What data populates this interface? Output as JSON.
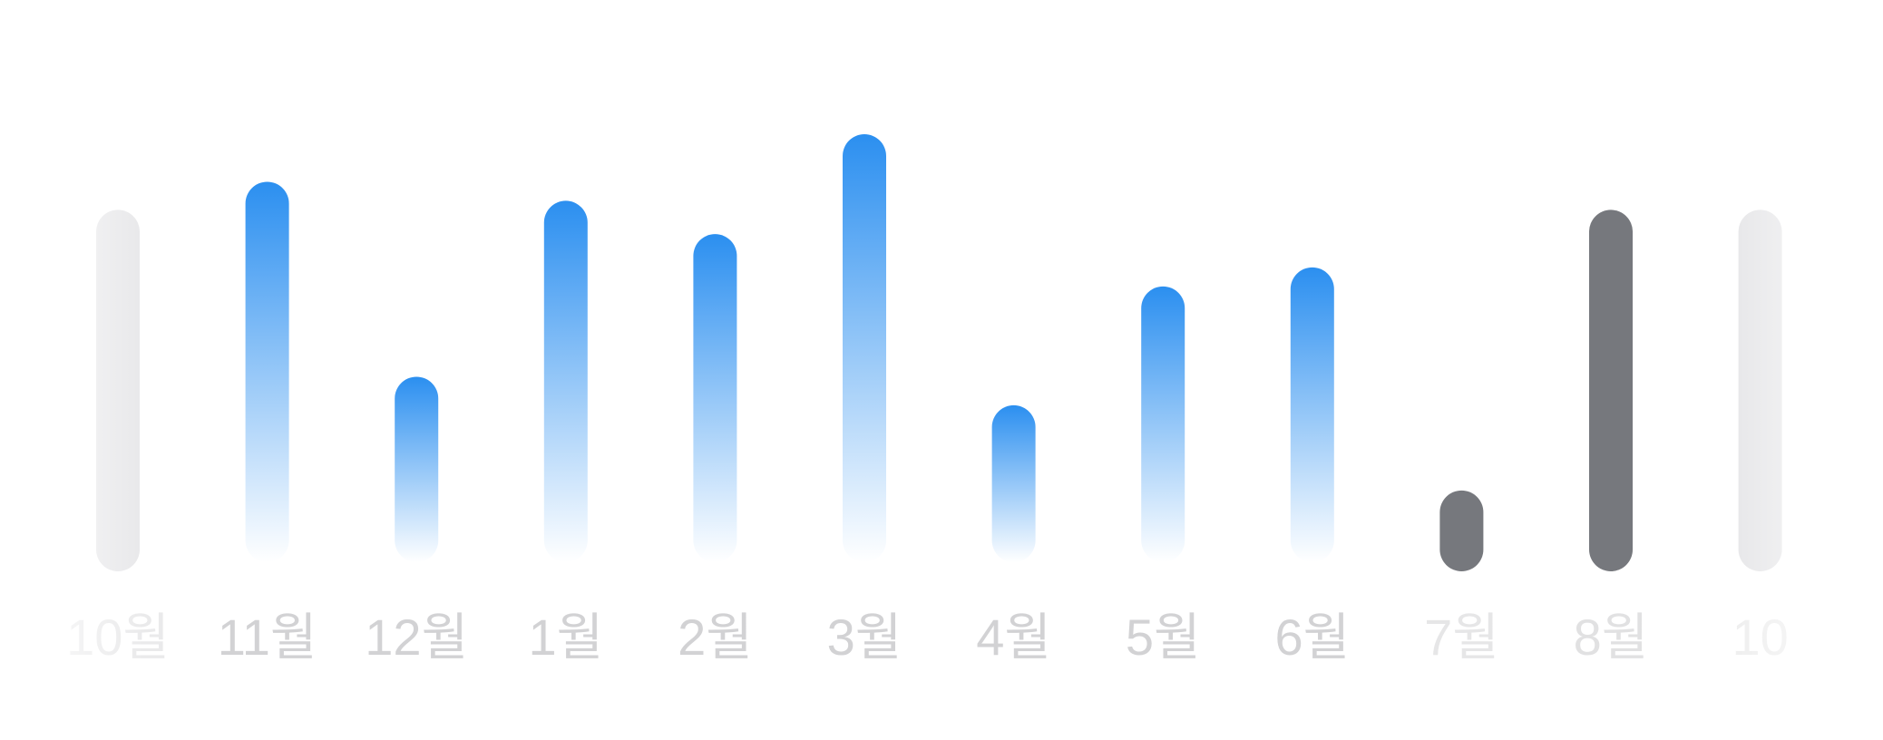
{
  "chart_data": {
    "type": "bar",
    "title": "",
    "xlabel": "",
    "ylabel": "",
    "categories": [
      "10월",
      "11월",
      "12월",
      "1월",
      "2월",
      "3월",
      "4월",
      "5월",
      "6월",
      "7월",
      "8월",
      "10"
    ],
    "values": [
      380,
      400,
      195,
      380,
      345,
      450,
      165,
      290,
      310,
      85,
      380,
      380
    ],
    "bar_styles": [
      "faded",
      "blue",
      "blue",
      "blue",
      "blue",
      "blue",
      "blue",
      "blue",
      "blue",
      "gray",
      "gray",
      "faded"
    ],
    "label_opacity": [
      0.45,
      1,
      1,
      1,
      1,
      1,
      1,
      1,
      1,
      0.55,
      0.65,
      0.35
    ],
    "ylim": [
      0,
      480
    ],
    "grid": false,
    "legend": "none",
    "colors": {
      "blue_top": "#2b8ff0",
      "blue_bottom": "#ffffff",
      "gray_bar": "#76787d",
      "faded_bar": "#e8e8ea",
      "label": "#d2d2d4"
    }
  }
}
